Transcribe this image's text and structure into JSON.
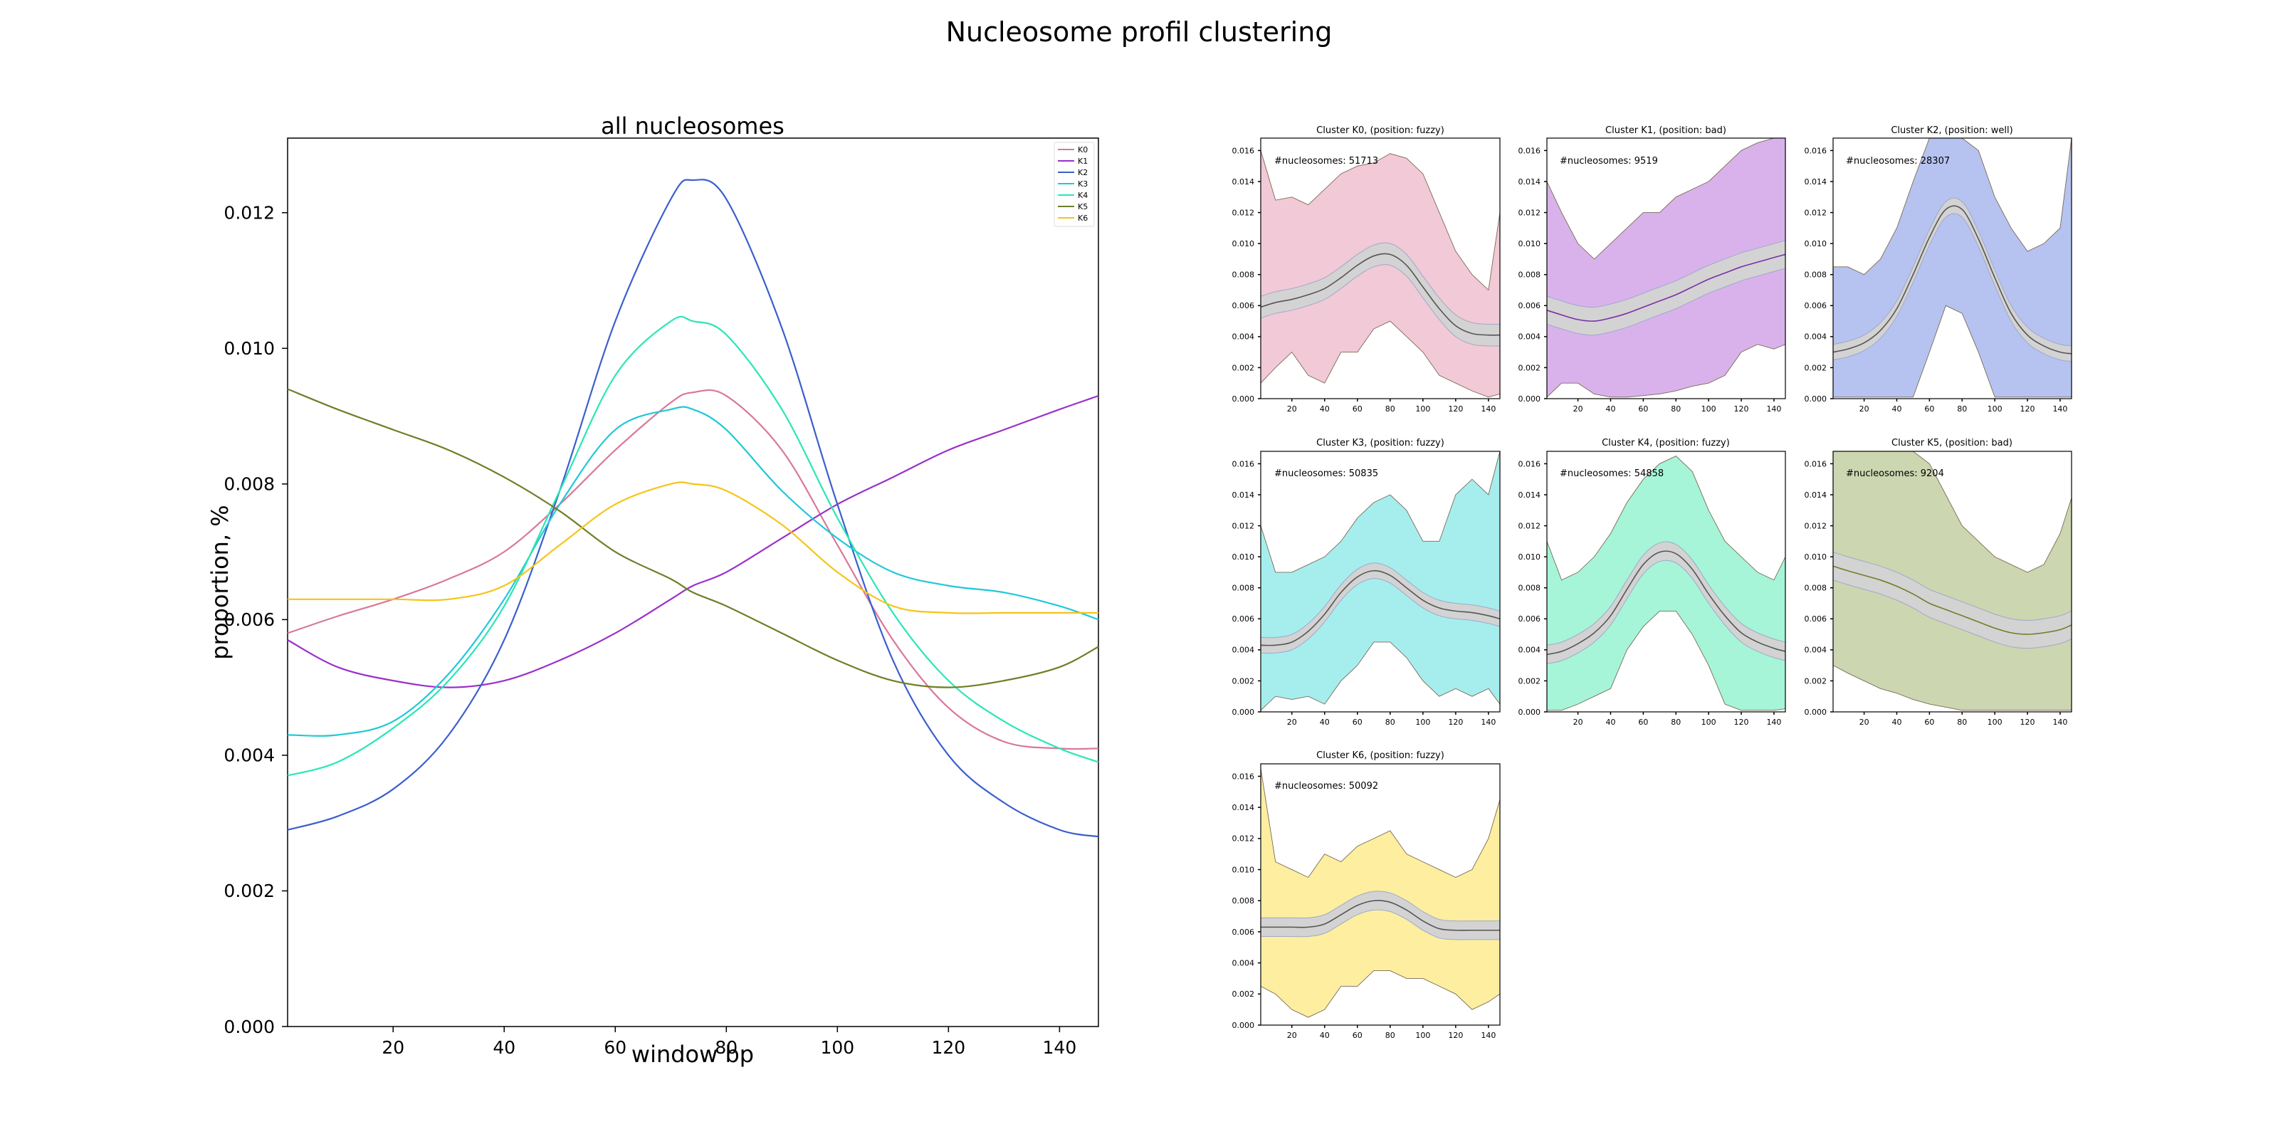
{
  "figure": {
    "title": "Nucleosome profil clustering"
  },
  "chart_data": [
    {
      "id": "main",
      "type": "line",
      "title": "all nucleosomes",
      "xlabel": "window bp",
      "ylabel": "proportion, %",
      "xlim": [
        1,
        147
      ],
      "ylim": [
        0,
        0.0131
      ],
      "xticks": [
        20,
        40,
        60,
        80,
        100,
        120,
        140
      ],
      "yticks": [
        0,
        0.002,
        0.004,
        0.006,
        0.008,
        0.01,
        0.012
      ],
      "ytick_labels": [
        "0.000",
        "0.002",
        "0.004",
        "0.006",
        "0.008",
        "0.010",
        "0.012"
      ],
      "legend_position": "top-right",
      "grid": false,
      "x": [
        1,
        10,
        20,
        30,
        40,
        50,
        60,
        70,
        74,
        80,
        90,
        100,
        110,
        120,
        130,
        140,
        147
      ],
      "series": [
        {
          "name": "K0",
          "color": "#d8789a",
          "values": [
            0.0058,
            0.00605,
            0.0063,
            0.0066,
            0.007,
            0.0077,
            0.0085,
            0.0092,
            0.00935,
            0.0093,
            0.0085,
            0.0071,
            0.0057,
            0.0047,
            0.0042,
            0.0041,
            0.0041
          ]
        },
        {
          "name": "K1",
          "color": "#9b30c9",
          "values": [
            0.0057,
            0.0053,
            0.0051,
            0.005,
            0.0051,
            0.0054,
            0.0058,
            0.0063,
            0.0065,
            0.0067,
            0.0072,
            0.0077,
            0.0081,
            0.0085,
            0.0088,
            0.0091,
            0.0093
          ]
        },
        {
          "name": "K2",
          "color": "#3a5fcd",
          "values": [
            0.0029,
            0.0031,
            0.0035,
            0.0043,
            0.0057,
            0.0079,
            0.0104,
            0.0122,
            0.01248,
            0.0122,
            0.0103,
            0.0077,
            0.0054,
            0.004,
            0.0033,
            0.0029,
            0.0028
          ]
        },
        {
          "name": "K3",
          "color": "#20c8d8",
          "values": [
            0.0043,
            0.0043,
            0.0045,
            0.0052,
            0.0063,
            0.0077,
            0.0088,
            0.0091,
            0.0091,
            0.0088,
            0.0079,
            0.0072,
            0.0067,
            0.0065,
            0.0064,
            0.0062,
            0.006
          ]
        },
        {
          "name": "K4",
          "color": "#2ae6b6",
          "values": [
            0.0037,
            0.0039,
            0.0044,
            0.0051,
            0.0062,
            0.0079,
            0.0096,
            0.0104,
            0.0104,
            0.0102,
            0.0091,
            0.0075,
            0.0061,
            0.0051,
            0.0045,
            0.0041,
            0.0039
          ]
        },
        {
          "name": "K5",
          "color": "#6e7f27",
          "values": [
            0.0094,
            0.0091,
            0.0088,
            0.0085,
            0.0081,
            0.0076,
            0.007,
            0.0066,
            0.0064,
            0.0062,
            0.0058,
            0.0054,
            0.0051,
            0.005,
            0.0051,
            0.0053,
            0.0056
          ]
        },
        {
          "name": "K6",
          "color": "#f5c518",
          "values": [
            0.0063,
            0.0063,
            0.0063,
            0.0063,
            0.0065,
            0.0071,
            0.0077,
            0.008,
            0.008,
            0.0079,
            0.0074,
            0.0067,
            0.0062,
            0.0061,
            0.0061,
            0.0061,
            0.0061
          ]
        }
      ]
    },
    {
      "id": "k0",
      "type": "area",
      "title": "Cluster K0, (position: fuzzy)",
      "annotation": "#nucleosomes: 51713",
      "fill_color": "#f2c9d6",
      "edge_color": "#7a6a55",
      "line_color": "#555555",
      "xlim": [
        1,
        147
      ],
      "ylim": [
        0,
        0.0168
      ],
      "xticks": [
        20,
        40,
        60,
        80,
        100,
        120,
        140
      ],
      "yticks": [
        0,
        0.002,
        0.004,
        0.006,
        0.008,
        0.01,
        0.012,
        0.014,
        0.016
      ],
      "ytick_labels": [
        "0.000",
        "0.002",
        "0.004",
        "0.006",
        "0.008",
        "0.010",
        "0.012",
        "0.014",
        "0.016"
      ],
      "x": [
        1,
        10,
        20,
        30,
        40,
        50,
        60,
        70,
        80,
        90,
        100,
        110,
        120,
        130,
        140,
        147
      ],
      "upper": [
        0.016,
        0.0128,
        0.013,
        0.0125,
        0.0135,
        0.0145,
        0.015,
        0.0152,
        0.0158,
        0.0155,
        0.0145,
        0.012,
        0.0095,
        0.008,
        0.007,
        0.012
      ],
      "lower": [
        0.001,
        0.002,
        0.003,
        0.0015,
        0.001,
        0.003,
        0.003,
        0.0045,
        0.005,
        0.004,
        0.003,
        0.0015,
        0.001,
        0.0005,
        0.0001,
        0.0003
      ],
      "mean": [
        0.0059,
        0.0062,
        0.0064,
        0.0067,
        0.0071,
        0.0078,
        0.0086,
        0.0092,
        0.0093,
        0.0086,
        0.0072,
        0.0058,
        0.0047,
        0.0042,
        0.0041,
        0.0041
      ],
      "band_half_width": 0.0007
    },
    {
      "id": "k1",
      "type": "area",
      "title": "Cluster K1, (position: bad)",
      "annotation": "#nucleosomes: 9519",
      "fill_color": "#d9b2ec",
      "edge_color": "#7a6a55",
      "line_color": "#7b2fa8",
      "xlim": [
        1,
        147
      ],
      "ylim": [
        0,
        0.0168
      ],
      "xticks": [
        20,
        40,
        60,
        80,
        100,
        120,
        140
      ],
      "yticks": [
        0,
        0.002,
        0.004,
        0.006,
        0.008,
        0.01,
        0.012,
        0.014,
        0.016
      ],
      "ytick_labels": [
        "0.000",
        "0.002",
        "0.004",
        "0.006",
        "0.008",
        "0.010",
        "0.012",
        "0.014",
        "0.016"
      ],
      "x": [
        1,
        10,
        20,
        30,
        40,
        50,
        60,
        70,
        80,
        90,
        100,
        110,
        120,
        130,
        140,
        147
      ],
      "upper": [
        0.014,
        0.012,
        0.01,
        0.009,
        0.01,
        0.011,
        0.012,
        0.012,
        0.013,
        0.0135,
        0.014,
        0.015,
        0.016,
        0.0165,
        0.0168,
        0.0168
      ],
      "lower": [
        0.0001,
        0.001,
        0.001,
        0.0003,
        0.0001,
        0.0001,
        0.0002,
        0.0003,
        0.0005,
        0.0008,
        0.001,
        0.0015,
        0.003,
        0.0035,
        0.0032,
        0.0035
      ],
      "mean": [
        0.0057,
        0.0054,
        0.0051,
        0.005,
        0.0052,
        0.0055,
        0.0059,
        0.0063,
        0.0067,
        0.0072,
        0.0077,
        0.0081,
        0.0085,
        0.0088,
        0.0091,
        0.0093
      ],
      "band_half_width": 0.0009
    },
    {
      "id": "k2",
      "type": "area",
      "title": "Cluster K2, (position: well)",
      "annotation": "#nucleosomes: 28307",
      "fill_color": "#b6c3f0",
      "edge_color": "#7a6a55",
      "line_color": "#555555",
      "xlim": [
        1,
        147
      ],
      "ylim": [
        0,
        0.0168
      ],
      "xticks": [
        20,
        40,
        60,
        80,
        100,
        120,
        140
      ],
      "yticks": [
        0,
        0.002,
        0.004,
        0.006,
        0.008,
        0.01,
        0.012,
        0.014,
        0.016
      ],
      "ytick_labels": [
        "0.000",
        "0.002",
        "0.004",
        "0.006",
        "0.008",
        "0.010",
        "0.012",
        "0.014",
        "0.016"
      ],
      "x": [
        1,
        10,
        20,
        30,
        40,
        50,
        60,
        70,
        80,
        90,
        100,
        110,
        120,
        130,
        140,
        147
      ],
      "upper": [
        0.0085,
        0.0085,
        0.008,
        0.009,
        0.011,
        0.014,
        0.0168,
        0.0168,
        0.0168,
        0.016,
        0.013,
        0.011,
        0.0095,
        0.01,
        0.011,
        0.0168
      ],
      "lower": [
        0.0001,
        0.0001,
        0.0001,
        0.0001,
        0.0001,
        0.0001,
        0.003,
        0.006,
        0.0055,
        0.003,
        0.0001,
        0.0001,
        0.0001,
        0.0001,
        0.0001,
        0.0001
      ],
      "mean": [
        0.003,
        0.0032,
        0.0036,
        0.0044,
        0.0058,
        0.008,
        0.0104,
        0.0122,
        0.0122,
        0.0103,
        0.0078,
        0.0055,
        0.0041,
        0.0034,
        0.003,
        0.0029
      ],
      "band_half_width": 0.0005
    },
    {
      "id": "k3",
      "type": "area",
      "title": "Cluster K3, (position: fuzzy)",
      "annotation": "#nucleosomes: 50835",
      "fill_color": "#a6eeee",
      "edge_color": "#7a6a55",
      "line_color": "#555555",
      "xlim": [
        1,
        147
      ],
      "ylim": [
        0,
        0.0168
      ],
      "xticks": [
        20,
        40,
        60,
        80,
        100,
        120,
        140
      ],
      "yticks": [
        0,
        0.002,
        0.004,
        0.006,
        0.008,
        0.01,
        0.012,
        0.014,
        0.016
      ],
      "ytick_labels": [
        "0.000",
        "0.002",
        "0.004",
        "0.006",
        "0.008",
        "0.010",
        "0.012",
        "0.014",
        "0.016"
      ],
      "x": [
        1,
        10,
        20,
        30,
        40,
        50,
        60,
        70,
        80,
        90,
        100,
        110,
        120,
        130,
        140,
        147
      ],
      "upper": [
        0.012,
        0.009,
        0.009,
        0.0095,
        0.01,
        0.011,
        0.0125,
        0.0135,
        0.014,
        0.013,
        0.011,
        0.011,
        0.014,
        0.015,
        0.014,
        0.0168
      ],
      "lower": [
        0.0001,
        0.001,
        0.0008,
        0.001,
        0.0005,
        0.002,
        0.003,
        0.0045,
        0.0045,
        0.0035,
        0.002,
        0.001,
        0.0015,
        0.001,
        0.0015,
        0.0005
      ],
      "mean": [
        0.0043,
        0.0043,
        0.0045,
        0.0052,
        0.0063,
        0.0077,
        0.0087,
        0.0091,
        0.0088,
        0.008,
        0.0072,
        0.0067,
        0.0065,
        0.0064,
        0.0062,
        0.006
      ],
      "band_half_width": 0.0005
    },
    {
      "id": "k4",
      "type": "area",
      "title": "Cluster K4, (position: fuzzy)",
      "annotation": "#nucleosomes: 54858",
      "fill_color": "#a6f5d8",
      "edge_color": "#7a6a55",
      "line_color": "#555555",
      "xlim": [
        1,
        147
      ],
      "ylim": [
        0,
        0.0168
      ],
      "xticks": [
        20,
        40,
        60,
        80,
        100,
        120,
        140
      ],
      "yticks": [
        0,
        0.002,
        0.004,
        0.006,
        0.008,
        0.01,
        0.012,
        0.014,
        0.016
      ],
      "ytick_labels": [
        "0.000",
        "0.002",
        "0.004",
        "0.006",
        "0.008",
        "0.010",
        "0.012",
        "0.014",
        "0.016"
      ],
      "x": [
        1,
        10,
        20,
        30,
        40,
        50,
        60,
        70,
        80,
        90,
        100,
        110,
        120,
        130,
        140,
        147
      ],
      "upper": [
        0.011,
        0.0085,
        0.009,
        0.01,
        0.0115,
        0.0135,
        0.015,
        0.016,
        0.0165,
        0.0155,
        0.013,
        0.011,
        0.01,
        0.009,
        0.0085,
        0.01
      ],
      "lower": [
        0.0001,
        0.0001,
        0.0005,
        0.001,
        0.0015,
        0.004,
        0.0055,
        0.0065,
        0.0065,
        0.005,
        0.003,
        0.0005,
        0.0001,
        0.0001,
        0.0001,
        0.0002
      ],
      "mean": [
        0.0037,
        0.0039,
        0.0044,
        0.0051,
        0.0062,
        0.0079,
        0.0095,
        0.0103,
        0.0102,
        0.0092,
        0.0076,
        0.0062,
        0.0051,
        0.0045,
        0.0041,
        0.0039
      ],
      "band_half_width": 0.0006
    },
    {
      "id": "k5",
      "type": "area",
      "title": "Cluster K5, (position: bad)",
      "annotation": "#nucleosomes: 9204",
      "fill_color": "#ccd6b0",
      "edge_color": "#7a6a55",
      "line_color": "#6e7f27",
      "xlim": [
        1,
        147
      ],
      "ylim": [
        0,
        0.0168
      ],
      "xticks": [
        20,
        40,
        60,
        80,
        100,
        120,
        140
      ],
      "yticks": [
        0,
        0.002,
        0.004,
        0.006,
        0.008,
        0.01,
        0.012,
        0.014,
        0.016
      ],
      "ytick_labels": [
        "0.000",
        "0.002",
        "0.004",
        "0.006",
        "0.008",
        "0.010",
        "0.012",
        "0.014",
        "0.016"
      ],
      "x": [
        1,
        10,
        20,
        30,
        40,
        50,
        60,
        70,
        80,
        90,
        100,
        110,
        120,
        130,
        140,
        147
      ],
      "upper": [
        0.0168,
        0.0168,
        0.0168,
        0.0168,
        0.0168,
        0.0168,
        0.016,
        0.014,
        0.012,
        0.011,
        0.01,
        0.0095,
        0.009,
        0.0095,
        0.0115,
        0.0138
      ],
      "lower": [
        0.003,
        0.0025,
        0.002,
        0.0015,
        0.0012,
        0.0008,
        0.0005,
        0.0003,
        0.0001,
        0.0001,
        0.0001,
        0.0001,
        0.0001,
        0.0001,
        0.0001,
        0.0001
      ],
      "mean": [
        0.0094,
        0.0091,
        0.0088,
        0.0085,
        0.0081,
        0.0076,
        0.007,
        0.0066,
        0.0062,
        0.0058,
        0.0054,
        0.0051,
        0.005,
        0.0051,
        0.0053,
        0.0056
      ],
      "band_half_width": 0.0009
    },
    {
      "id": "k6",
      "type": "area",
      "title": "Cluster K6, (position: fuzzy)",
      "annotation": "#nucleosomes: 50092",
      "fill_color": "#fdeea0",
      "edge_color": "#7a6a55",
      "line_color": "#555555",
      "xlim": [
        1,
        147
      ],
      "ylim": [
        0,
        0.0168
      ],
      "xticks": [
        20,
        40,
        60,
        80,
        100,
        120,
        140
      ],
      "yticks": [
        0,
        0.002,
        0.004,
        0.006,
        0.008,
        0.01,
        0.012,
        0.014,
        0.016
      ],
      "ytick_labels": [
        "0.000",
        "0.002",
        "0.004",
        "0.006",
        "0.008",
        "0.010",
        "0.012",
        "0.014",
        "0.016"
      ],
      "x": [
        1,
        10,
        20,
        30,
        40,
        50,
        60,
        70,
        80,
        90,
        100,
        110,
        120,
        130,
        140,
        147
      ],
      "upper": [
        0.0165,
        0.0105,
        0.01,
        0.0095,
        0.011,
        0.0105,
        0.0115,
        0.012,
        0.0125,
        0.011,
        0.0105,
        0.01,
        0.0095,
        0.01,
        0.012,
        0.0145
      ],
      "lower": [
        0.0025,
        0.002,
        0.001,
        0.0005,
        0.001,
        0.0025,
        0.0025,
        0.0035,
        0.0035,
        0.003,
        0.003,
        0.0025,
        0.002,
        0.001,
        0.0015,
        0.002
      ],
      "mean": [
        0.0063,
        0.0063,
        0.0063,
        0.0063,
        0.0065,
        0.0071,
        0.0077,
        0.008,
        0.0079,
        0.0074,
        0.0067,
        0.0062,
        0.0061,
        0.0061,
        0.0061,
        0.0061
      ],
      "band_half_width": 0.0006
    }
  ]
}
